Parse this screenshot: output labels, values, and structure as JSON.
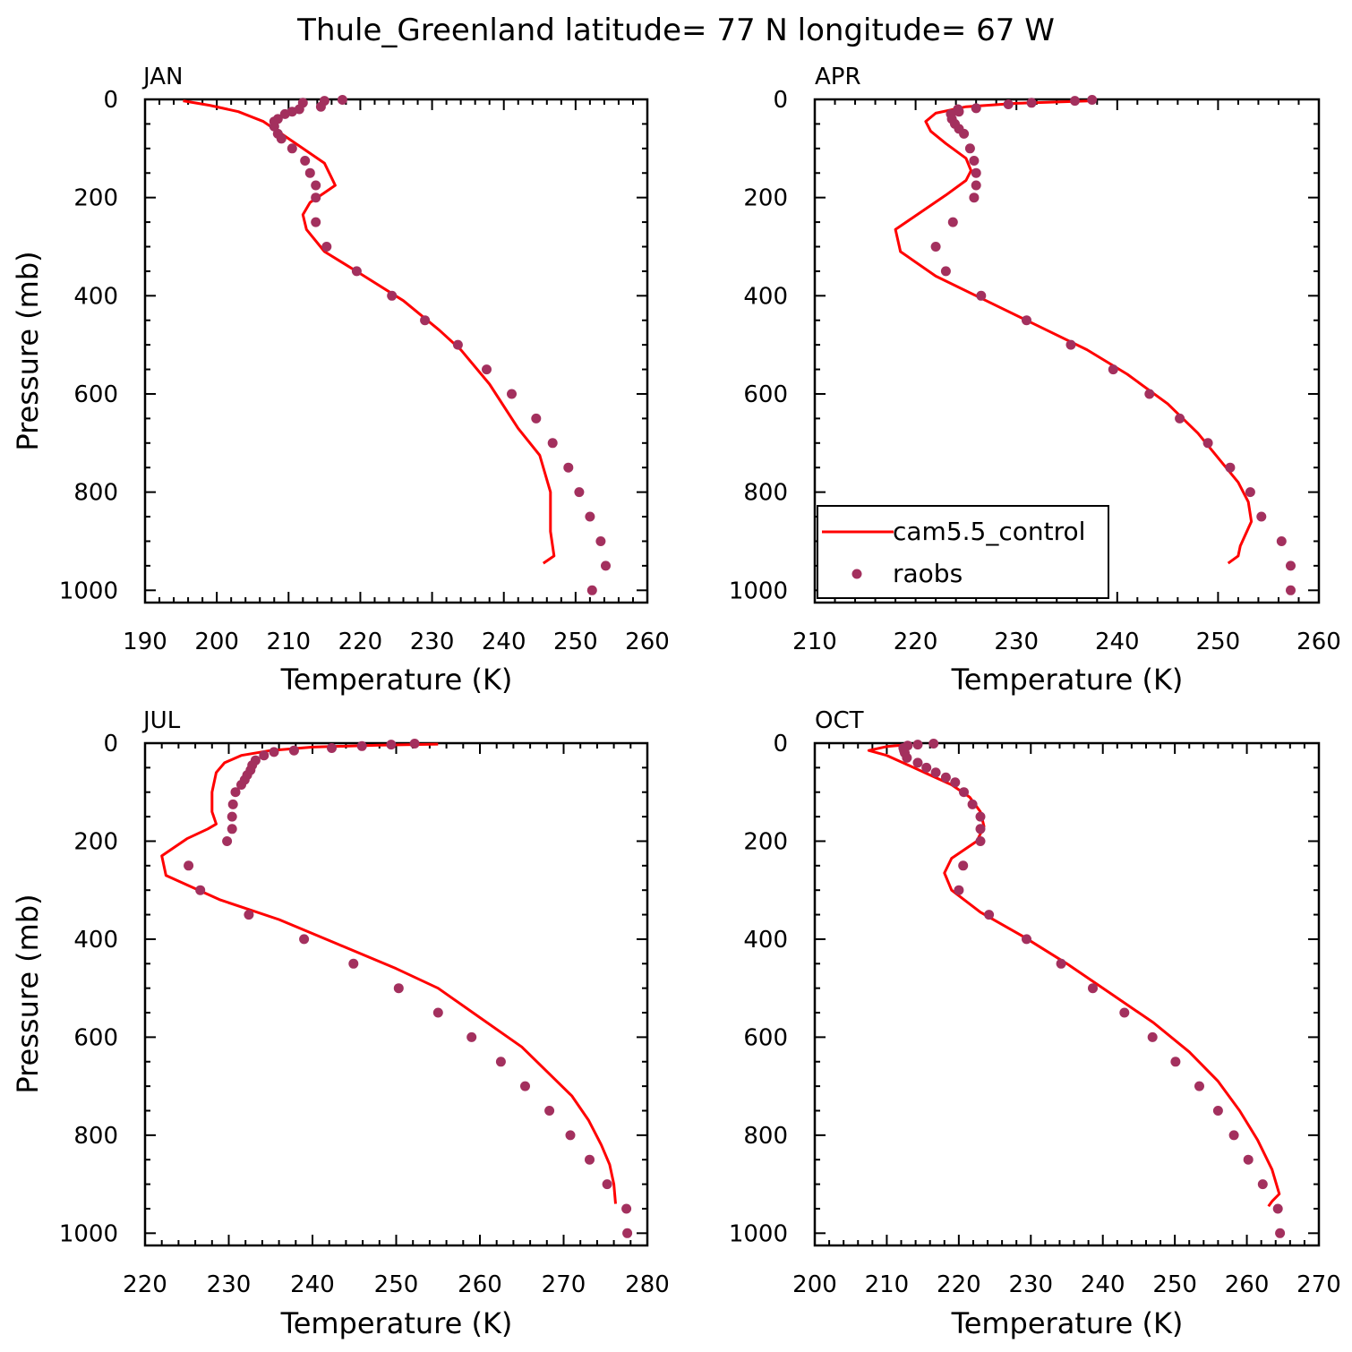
{
  "title": "Thule_Greenland  latitude= 77 N longitude= 67 W",
  "colors": {
    "model": "#ff0000",
    "obs": "#a3305e",
    "axis": "#000000"
  },
  "legend": {
    "model_label": "cam5.5_control",
    "obs_label": "raobs",
    "placement": "lower-left of APR panel"
  },
  "chart_data": [
    {
      "type": "line",
      "panel": "JAN",
      "xlabel": "Temperature (K)",
      "ylabel": "Pressure (mb)",
      "xlim": [
        190,
        260
      ],
      "ylim": [
        1025,
        0
      ],
      "xticks": [
        190,
        200,
        210,
        220,
        230,
        240,
        250,
        260
      ],
      "yticks": [
        0,
        200,
        400,
        600,
        800,
        1000
      ],
      "series": [
        {
          "name": "cam5.5_control",
          "points": [
            [
              195.3,
              3
            ],
            [
              199,
              12
            ],
            [
              203,
              25
            ],
            [
              206.5,
              45
            ],
            [
              209,
              70
            ],
            [
              212,
              100
            ],
            [
              215,
              130
            ],
            [
              216,
              160
            ],
            [
              216.5,
              175
            ],
            [
              215,
              190
            ],
            [
              213,
              210
            ],
            [
              212,
              235
            ],
            [
              212.5,
              265
            ],
            [
              215,
              310
            ],
            [
              220,
              355
            ],
            [
              226,
              410
            ],
            [
              231,
              470
            ],
            [
              234,
              510
            ],
            [
              238,
              580
            ],
            [
              242,
              670
            ],
            [
              245,
              725
            ],
            [
              246.5,
              800
            ],
            [
              246.5,
              880
            ],
            [
              247,
              930
            ],
            [
              245.5,
              945
            ]
          ]
        },
        {
          "name": "raobs",
          "points": [
            [
              217.5,
              1
            ],
            [
              215,
              3
            ],
            [
              212,
              7
            ],
            [
              214.5,
              15
            ],
            [
              211.5,
              20
            ],
            [
              210.5,
              25
            ],
            [
              209.5,
              30
            ],
            [
              208.5,
              40
            ],
            [
              208,
              45
            ],
            [
              208,
              55
            ],
            [
              208.5,
              70
            ],
            [
              209,
              80
            ],
            [
              210.5,
              100
            ],
            [
              212.3,
              125
            ],
            [
              213,
              150
            ],
            [
              213.8,
              175
            ],
            [
              213.8,
              200
            ],
            [
              213.8,
              250
            ],
            [
              215.3,
              300
            ],
            [
              219.5,
              350
            ],
            [
              224.4,
              400
            ],
            [
              229,
              450
            ],
            [
              233.6,
              500
            ],
            [
              237.6,
              550
            ],
            [
              241.1,
              600
            ],
            [
              244.5,
              650
            ],
            [
              246.8,
              700
            ],
            [
              249,
              750
            ],
            [
              250.5,
              800
            ],
            [
              252,
              850
            ],
            [
              253.5,
              900
            ],
            [
              254.2,
              950
            ],
            [
              252.3,
              1000
            ]
          ]
        }
      ]
    },
    {
      "type": "line",
      "panel": "APR",
      "xlabel": "Temperature (K)",
      "ylabel": "",
      "xlim": [
        210,
        260
      ],
      "ylim": [
        1025,
        0
      ],
      "xticks": [
        210,
        220,
        230,
        240,
        250,
        260
      ],
      "yticks": [
        0,
        200,
        400,
        600,
        800,
        1000
      ],
      "series": [
        {
          "name": "cam5.5_control",
          "points": [
            [
              237.5,
              3
            ],
            [
              230,
              8
            ],
            [
              225,
              15
            ],
            [
              222,
              28
            ],
            [
              221,
              45
            ],
            [
              221.5,
              65
            ],
            [
              223,
              90
            ],
            [
              225,
              120
            ],
            [
              225.5,
              145
            ],
            [
              225,
              165
            ],
            [
              223,
              195
            ],
            [
              220.5,
              230
            ],
            [
              218,
              265
            ],
            [
              218.5,
              310
            ],
            [
              222,
              360
            ],
            [
              227,
              410
            ],
            [
              232,
              460
            ],
            [
              237,
              510
            ],
            [
              241,
              560
            ],
            [
              245,
              620
            ],
            [
              248,
              680
            ],
            [
              250,
              730
            ],
            [
              252,
              780
            ],
            [
              253,
              820
            ],
            [
              253.3,
              860
            ],
            [
              252.2,
              910
            ],
            [
              252,
              930
            ],
            [
              251,
              945
            ]
          ]
        },
        {
          "name": "raobs",
          "points": [
            [
              237.5,
              1
            ],
            [
              235.8,
              3
            ],
            [
              231.5,
              7
            ],
            [
              229.2,
              10
            ],
            [
              226,
              18
            ],
            [
              224.2,
              20
            ],
            [
              224.3,
              25
            ],
            [
              223.5,
              30
            ],
            [
              223.6,
              40
            ],
            [
              223.9,
              50
            ],
            [
              224.3,
              60
            ],
            [
              224.8,
              70
            ],
            [
              225.4,
              100
            ],
            [
              225.8,
              125
            ],
            [
              226,
              150
            ],
            [
              226,
              175
            ],
            [
              225.8,
              200
            ],
            [
              223.7,
              250
            ],
            [
              222,
              300
            ],
            [
              223,
              350
            ],
            [
              226.5,
              400
            ],
            [
              231,
              450
            ],
            [
              235.4,
              500
            ],
            [
              239.6,
              550
            ],
            [
              243.2,
              600
            ],
            [
              246.2,
              650
            ],
            [
              249,
              700
            ],
            [
              251.2,
              750
            ],
            [
              253.2,
              800
            ],
            [
              254.3,
              850
            ],
            [
              256.3,
              900
            ],
            [
              257.2,
              950
            ],
            [
              257.2,
              1000
            ]
          ]
        }
      ]
    },
    {
      "type": "line",
      "panel": "JUL",
      "xlabel": "Temperature (K)",
      "ylabel": "Pressure (mb)",
      "xlim": [
        220,
        280
      ],
      "ylim": [
        1025,
        0
      ],
      "xticks": [
        220,
        230,
        240,
        250,
        260,
        270,
        280
      ],
      "yticks": [
        0,
        200,
        400,
        600,
        800,
        1000
      ],
      "series": [
        {
          "name": "cam5.5_control",
          "points": [
            [
              255,
              2
            ],
            [
              248,
              4
            ],
            [
              240,
              8
            ],
            [
              235,
              15
            ],
            [
              231.5,
              25
            ],
            [
              229.5,
              40
            ],
            [
              228.5,
              60
            ],
            [
              228,
              100
            ],
            [
              228,
              140
            ],
            [
              228.5,
              165
            ],
            [
              227.5,
              175
            ],
            [
              225,
              195
            ],
            [
              222,
              230
            ],
            [
              222.5,
              270
            ],
            [
              229,
              320
            ],
            [
              236,
              360
            ],
            [
              243,
              410
            ],
            [
              250,
              460
            ],
            [
              255,
              500
            ],
            [
              260,
              560
            ],
            [
              265,
              620
            ],
            [
              268,
              670
            ],
            [
              271,
              720
            ],
            [
              273,
              770
            ],
            [
              274.5,
              820
            ],
            [
              275.5,
              860
            ],
            [
              276,
              900
            ],
            [
              276.2,
              940
            ]
          ]
        },
        {
          "name": "raobs",
          "points": [
            [
              252.2,
              1
            ],
            [
              249.4,
              3
            ],
            [
              245.9,
              6
            ],
            [
              242.3,
              10
            ],
            [
              237.8,
              15
            ],
            [
              235.4,
              18
            ],
            [
              234.2,
              25
            ],
            [
              233.2,
              35
            ],
            [
              232.8,
              45
            ],
            [
              232.6,
              55
            ],
            [
              232.2,
              65
            ],
            [
              231.9,
              75
            ],
            [
              231.5,
              85
            ],
            [
              230.8,
              100
            ],
            [
              230.5,
              125
            ],
            [
              230.4,
              150
            ],
            [
              230.4,
              175
            ],
            [
              229.8,
              200
            ],
            [
              225.2,
              250
            ],
            [
              226.6,
              300
            ],
            [
              232.4,
              350
            ],
            [
              239,
              400
            ],
            [
              244.9,
              450
            ],
            [
              250.3,
              500
            ],
            [
              255,
              550
            ],
            [
              259,
              600
            ],
            [
              262.5,
              650
            ],
            [
              265.4,
              700
            ],
            [
              268.3,
              750
            ],
            [
              270.8,
              800
            ],
            [
              273.1,
              850
            ],
            [
              275.2,
              900
            ],
            [
              277.5,
              950
            ],
            [
              277.6,
              1000
            ]
          ]
        }
      ]
    },
    {
      "type": "line",
      "panel": "OCT",
      "xlabel": "Temperature (K)",
      "ylabel": "",
      "xlim": [
        200,
        270
      ],
      "ylim": [
        1025,
        0
      ],
      "xticks": [
        200,
        210,
        220,
        230,
        240,
        250,
        260,
        270
      ],
      "yticks": [
        0,
        200,
        400,
        600,
        800,
        1000
      ],
      "series": [
        {
          "name": "cam5.5_control",
          "points": [
            [
              213,
              3
            ],
            [
              210,
              7
            ],
            [
              207.5,
              15
            ],
            [
              210,
              25
            ],
            [
              213,
              45
            ],
            [
              216,
              65
            ],
            [
              219,
              85
            ],
            [
              221.5,
              110
            ],
            [
              223,
              140
            ],
            [
              223.5,
              170
            ],
            [
              222.5,
              200
            ],
            [
              219,
              235
            ],
            [
              218,
              265
            ],
            [
              219,
              300
            ],
            [
              223,
              345
            ],
            [
              229,
              395
            ],
            [
              235,
              450
            ],
            [
              241,
              510
            ],
            [
              247,
              570
            ],
            [
              252,
              630
            ],
            [
              256,
              690
            ],
            [
              259,
              750
            ],
            [
              261.5,
              810
            ],
            [
              263.5,
              870
            ],
            [
              264.5,
              920
            ],
            [
              263.5,
              935
            ],
            [
              263,
              945
            ]
          ]
        },
        {
          "name": "raobs",
          "points": [
            [
              216.5,
              1
            ],
            [
              214.3,
              3
            ],
            [
              212.9,
              5
            ],
            [
              212.3,
              10
            ],
            [
              212.4,
              15
            ],
            [
              212.5,
              20
            ],
            [
              212.8,
              30
            ],
            [
              214.3,
              40
            ],
            [
              215.5,
              50
            ],
            [
              216.8,
              60
            ],
            [
              218.2,
              70
            ],
            [
              219.5,
              80
            ],
            [
              220.7,
              100
            ],
            [
              221.9,
              125
            ],
            [
              223,
              150
            ],
            [
              223,
              175
            ],
            [
              223,
              200
            ],
            [
              220.6,
              250
            ],
            [
              220,
              300
            ],
            [
              224.2,
              350
            ],
            [
              229.4,
              400
            ],
            [
              234.2,
              450
            ],
            [
              238.6,
              500
            ],
            [
              243,
              550
            ],
            [
              246.9,
              600
            ],
            [
              250.1,
              650
            ],
            [
              253.4,
              700
            ],
            [
              256,
              750
            ],
            [
              258.2,
              800
            ],
            [
              260.2,
              850
            ],
            [
              262.2,
              900
            ],
            [
              264.3,
              950
            ],
            [
              264.6,
              1000
            ]
          ]
        }
      ]
    }
  ]
}
